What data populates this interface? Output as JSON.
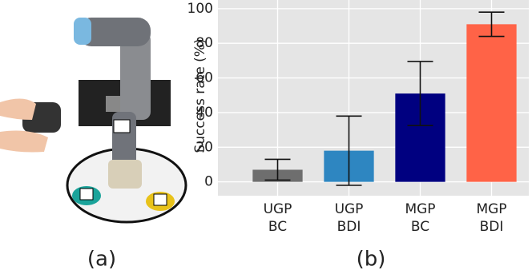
{
  "figure": {
    "labels": [
      "(a)",
      "(b)"
    ]
  },
  "chart_data": {
    "type": "bar",
    "ylabel": "Success rate (%)",
    "categories": [
      "UGP BC",
      "UGP BDI",
      "MGP BC",
      "MGP BDI"
    ],
    "values": [
      7,
      18,
      51,
      91
    ],
    "errors": [
      6,
      20,
      18.5,
      7
    ],
    "colors": [
      "#6e6e6e",
      "#2e86c1",
      "#000080",
      "#ff6347"
    ],
    "ylim": [
      -8,
      105
    ],
    "yticks": [
      0,
      20,
      40,
      60,
      80,
      100
    ],
    "grid": true
  }
}
